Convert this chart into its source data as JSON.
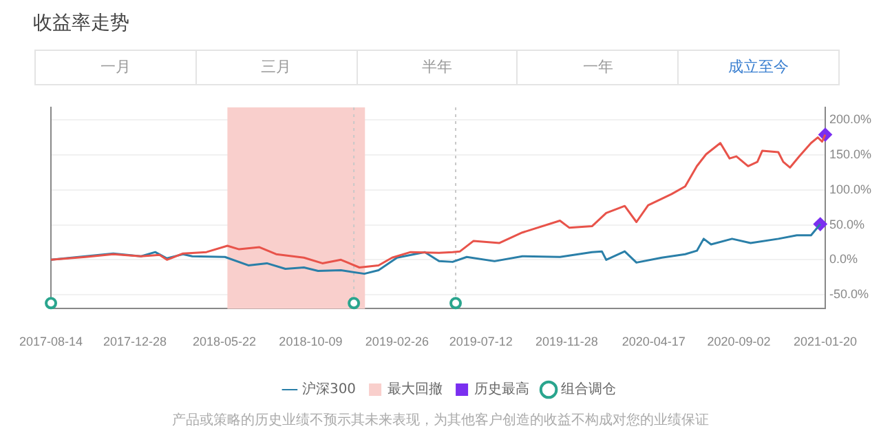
{
  "chart_data": {
    "type": "line",
    "title": "收益率走势",
    "annotations": [
      "一月",
      "三月",
      "半年",
      "一年",
      "成立至今",
      "产品或策略的历史业绩不预示其未来表现，为其他客户创造的收益不构成对您的业绩保证"
    ],
    "xlim": [
      "2017-08-14",
      "2021-01-20"
    ],
    "xticks": [
      "2017-08-14",
      "2017-12-28",
      "2018-05-22",
      "2018-10-09",
      "2019-02-26",
      "2019-07-12",
      "2019-11-28",
      "2020-04-17",
      "2020-09-02",
      "2021-01-20"
    ],
    "ylim": [
      -70,
      218
    ],
    "yticks": [
      {
        "value": -50,
        "label": "-50.0%"
      },
      {
        "value": 0,
        "label": "0.0%"
      },
      {
        "value": 50,
        "label": "50.0%"
      },
      {
        "value": 100,
        "label": "100.0%"
      },
      {
        "value": 150,
        "label": "150.0%"
      },
      {
        "value": 200,
        "label": "200.0%"
      }
    ],
    "grid": "y",
    "legend": "bottom",
    "marker": "none",
    "line_style": "solid",
    "series": [
      {
        "color": "#e8534a",
        "x": [
          "2017-08-14",
          "2017-10-09",
          "2017-11-23",
          "2018-01-07",
          "2018-02-06",
          "2018-02-18",
          "2018-03-16",
          "2018-04-23",
          "2018-05-27",
          "2018-06-15",
          "2018-07-18",
          "2018-08-14",
          "2018-09-28",
          "2018-10-28",
          "2018-11-27",
          "2018-12-27",
          "2019-01-27",
          "2019-02-18",
          "2019-03-20",
          "2019-05-05",
          "2019-05-27",
          "2019-06-08",
          "2019-06-30",
          "2019-08-11",
          "2019-09-17",
          "2019-11-17",
          "2019-12-02",
          "2020-01-08",
          "2020-01-31",
          "2020-03-01",
          "2020-03-20",
          "2020-04-08",
          "2020-05-16",
          "2020-06-07",
          "2020-06-26",
          "2020-07-11",
          "2020-08-03",
          "2020-08-18",
          "2020-08-29",
          "2020-09-17",
          "2020-10-02",
          "2020-10-10",
          "2020-11-05",
          "2020-11-13",
          "2020-11-24",
          "2020-12-09",
          "2020-12-28",
          "2021-01-08",
          "2021-01-15",
          "2021-01-20"
        ],
        "values": [
          0,
          4,
          8,
          5,
          7,
          0,
          9,
          11,
          20,
          15,
          18,
          8,
          3,
          -5,
          0,
          -11,
          -8,
          3,
          11,
          10,
          11,
          12,
          27,
          24,
          39,
          56,
          46,
          48,
          67,
          77,
          54,
          78,
          94,
          105,
          134,
          151,
          167,
          145,
          148,
          134,
          140,
          156,
          154,
          140,
          132,
          148,
          167,
          175,
          169,
          179
        ]
      },
      {
        "name": "沪深300",
        "color": "#2a7fa8",
        "x": [
          "2017-08-14",
          "2017-10-09",
          "2017-11-23",
          "2018-01-07",
          "2018-01-30",
          "2018-02-18",
          "2018-03-16",
          "2018-03-31",
          "2018-05-23",
          "2018-06-30",
          "2018-07-30",
          "2018-08-29",
          "2018-09-28",
          "2018-10-21",
          "2018-11-27",
          "2019-01-04",
          "2019-01-27",
          "2019-02-26",
          "2019-04-12",
          "2019-05-05",
          "2019-05-27",
          "2019-06-19",
          "2019-08-03",
          "2019-09-17",
          "2019-11-17",
          "2020-01-08",
          "2020-01-24",
          "2020-01-31",
          "2020-03-01",
          "2020-03-20",
          "2020-04-30",
          "2020-06-07",
          "2020-06-26",
          "2020-07-07",
          "2020-07-19",
          "2020-08-22",
          "2020-09-21",
          "2020-11-05",
          "2020-12-05",
          "2020-12-28",
          "2021-01-12"
        ],
        "values": [
          0,
          5,
          9,
          5,
          11,
          2,
          8,
          5,
          4,
          -8,
          -5,
          -13,
          -11,
          -16,
          -15,
          -20,
          -15,
          3,
          11,
          -2,
          -3,
          4,
          -2,
          5,
          4,
          11,
          12,
          0,
          12,
          -4,
          3,
          8,
          13,
          30,
          22,
          30,
          24,
          30,
          35,
          35,
          51
        ]
      },
      {
        "name": "历史最高",
        "type": "scatter",
        "marker": "diamond",
        "color": "#7a2ff0",
        "x": [
          "2021-01-20",
          "2021-01-12"
        ],
        "values": [
          179,
          51
        ]
      },
      {
        "name": "组合调仓",
        "type": "scatter",
        "marker": "circle",
        "color": "#2aa58e",
        "x": [
          "2017-08-14",
          "2018-12-18",
          "2019-06-01"
        ],
        "values": [
          -62,
          -62,
          -62
        ]
      }
    ],
    "bands": [
      {
        "axis": "x",
        "from": "2018-05-27",
        "to": "2019-01-05",
        "label": "最大回撤",
        "color": "#f9cfcc"
      }
    ],
    "ref_lines": [
      {
        "axis": "x",
        "value": "2018-12-18",
        "color": "#c8c8c8",
        "line_style": "dotted"
      },
      {
        "axis": "x",
        "value": "2019-06-01",
        "color": "#c8c8c8",
        "line_style": "dotted"
      }
    ]
  }
}
